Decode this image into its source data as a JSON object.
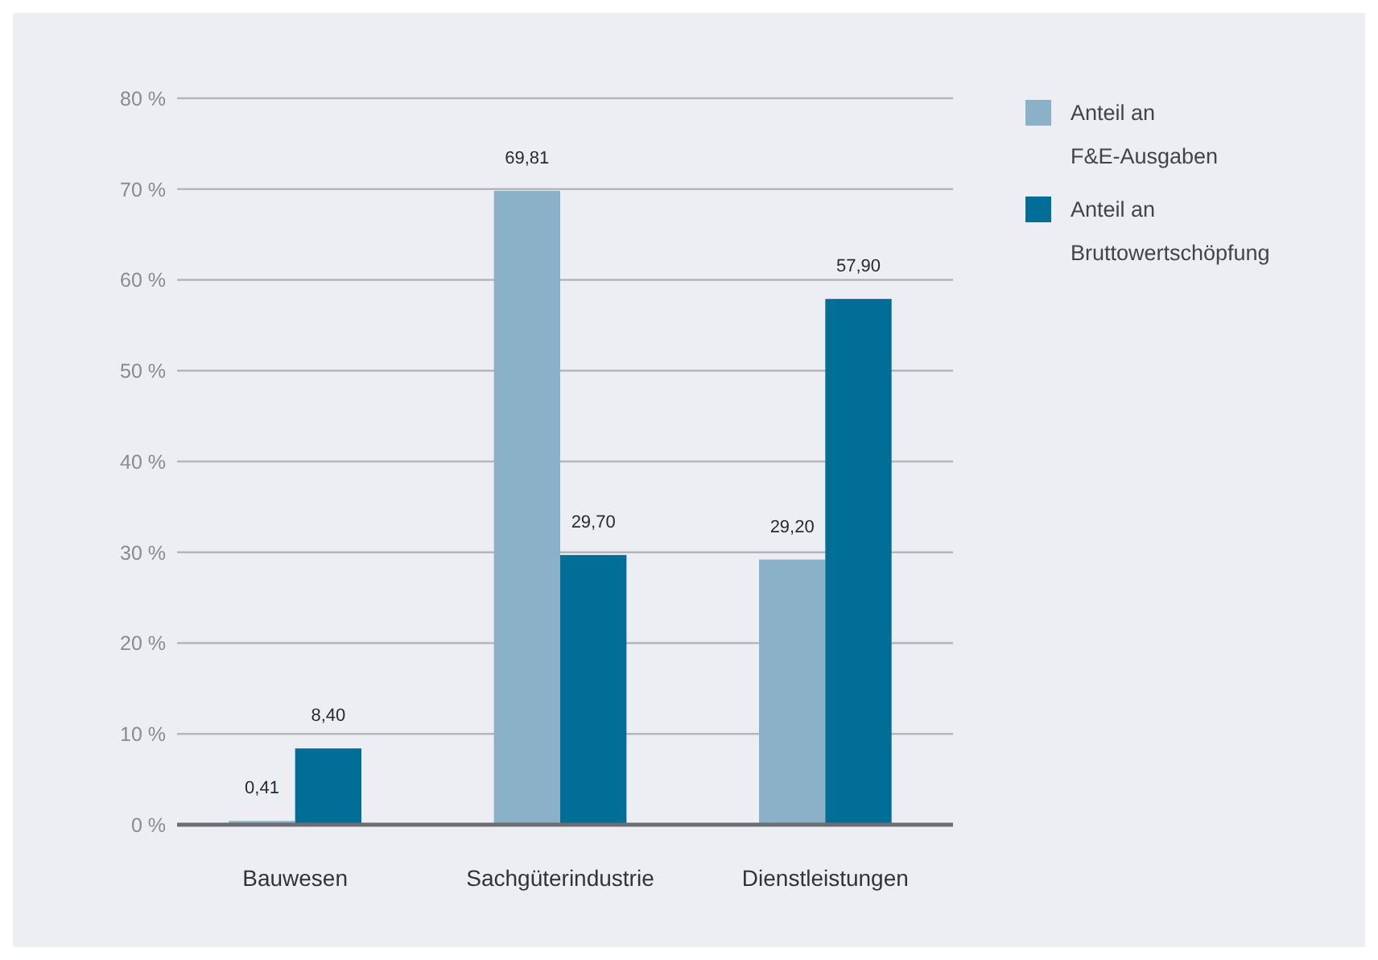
{
  "chart_data": {
    "type": "bar",
    "categories": [
      "Bauwesen",
      "Sachgüterindustrie",
      "Dienstleistungen"
    ],
    "series": [
      {
        "name": "Anteil an F&E-Ausgaben",
        "color": "#8ab1c8",
        "values": [
          0.41,
          69.81,
          29.2
        ],
        "value_labels": [
          "0,41",
          "69,81",
          "29,20"
        ]
      },
      {
        "name": "Anteil an Bruttowertschöpfung",
        "color": "#006e96",
        "values": [
          8.4,
          29.7,
          57.9
        ],
        "value_labels": [
          "8,40",
          "29,70",
          "57,90"
        ]
      }
    ],
    "ylim": [
      0,
      80
    ],
    "yticks": [
      {
        "value": 0,
        "label": "0 %"
      },
      {
        "value": 10,
        "label": "10 %"
      },
      {
        "value": 20,
        "label": "20 %"
      },
      {
        "value": 30,
        "label": "30 %"
      },
      {
        "value": 40,
        "label": "40 %"
      },
      {
        "value": 50,
        "label": "50 %"
      },
      {
        "value": 60,
        "label": "60 %"
      },
      {
        "value": 70,
        "label": "70 %"
      },
      {
        "value": 80,
        "label": "80 %"
      }
    ],
    "grid": "y",
    "legend": "right"
  }
}
